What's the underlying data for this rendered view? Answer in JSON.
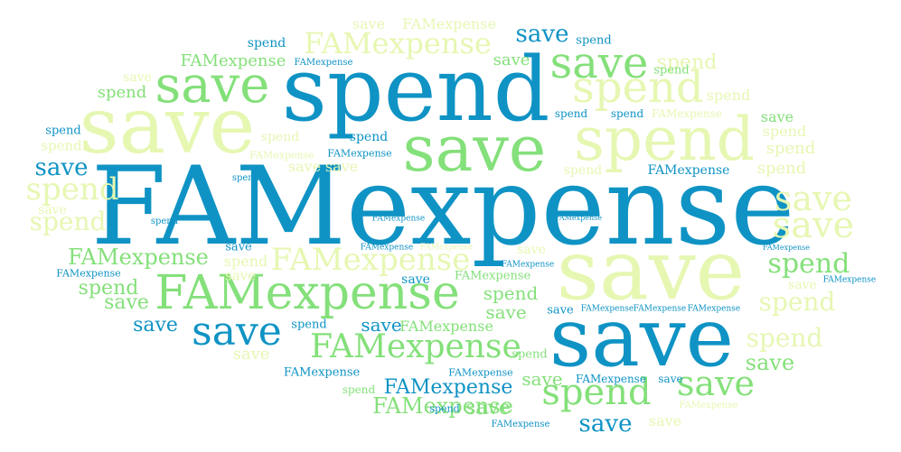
{
  "words": {
    "famexpense": "FAMexpense",
    "spend": "spend",
    "save": "save"
  },
  "colors": {
    "blue": "#0f93c4",
    "green": "#84e07a",
    "pale": "#e6f7b2",
    "background": "#ffffff"
  }
}
